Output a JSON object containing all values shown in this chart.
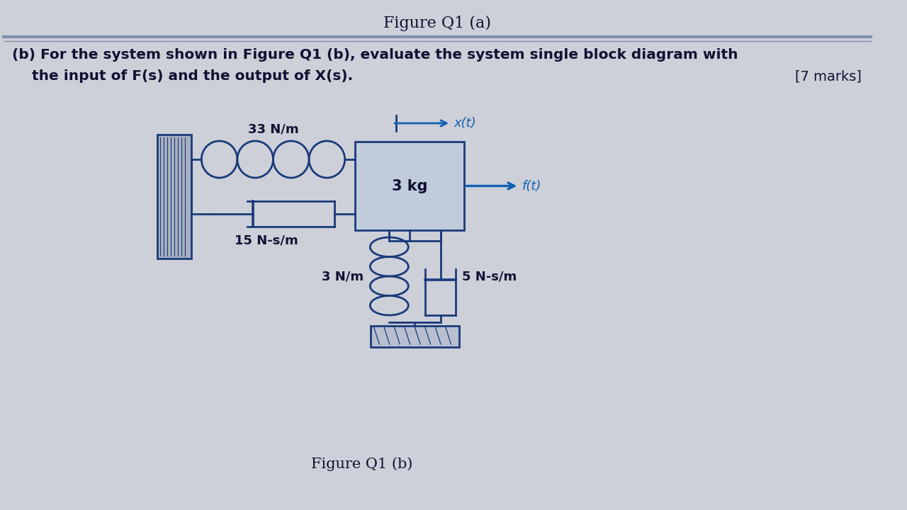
{
  "title_top": "Figure Q1 (a)",
  "title_bottom": "Figure Q1 (b)",
  "q_line1": "(b) For the system shown in Figure Q1 (b), evaluate the system s​ingle block diagram with",
  "q_line2": "    the input of F(s) and the output of X(s).",
  "marks_text": "[7 marks]",
  "bg_color": "#cdd0d8",
  "line_color": "#1a3a7a",
  "text_color": "#111133",
  "arrow_color": "#1060b0",
  "spring_33_label": "33 N/m",
  "damper_15_label": "15 N-s/m",
  "mass_label": "3 kg",
  "spring_3_label": "3 N/m",
  "damper_5_label": "5 N-s/m",
  "xt_label": "x(t)",
  "ft_label": "f(t)",
  "wall_facecolor": "#a8b0c0",
  "mass_facecolor": "#c0ccdc",
  "ground_facecolor": "#b8c0d0"
}
